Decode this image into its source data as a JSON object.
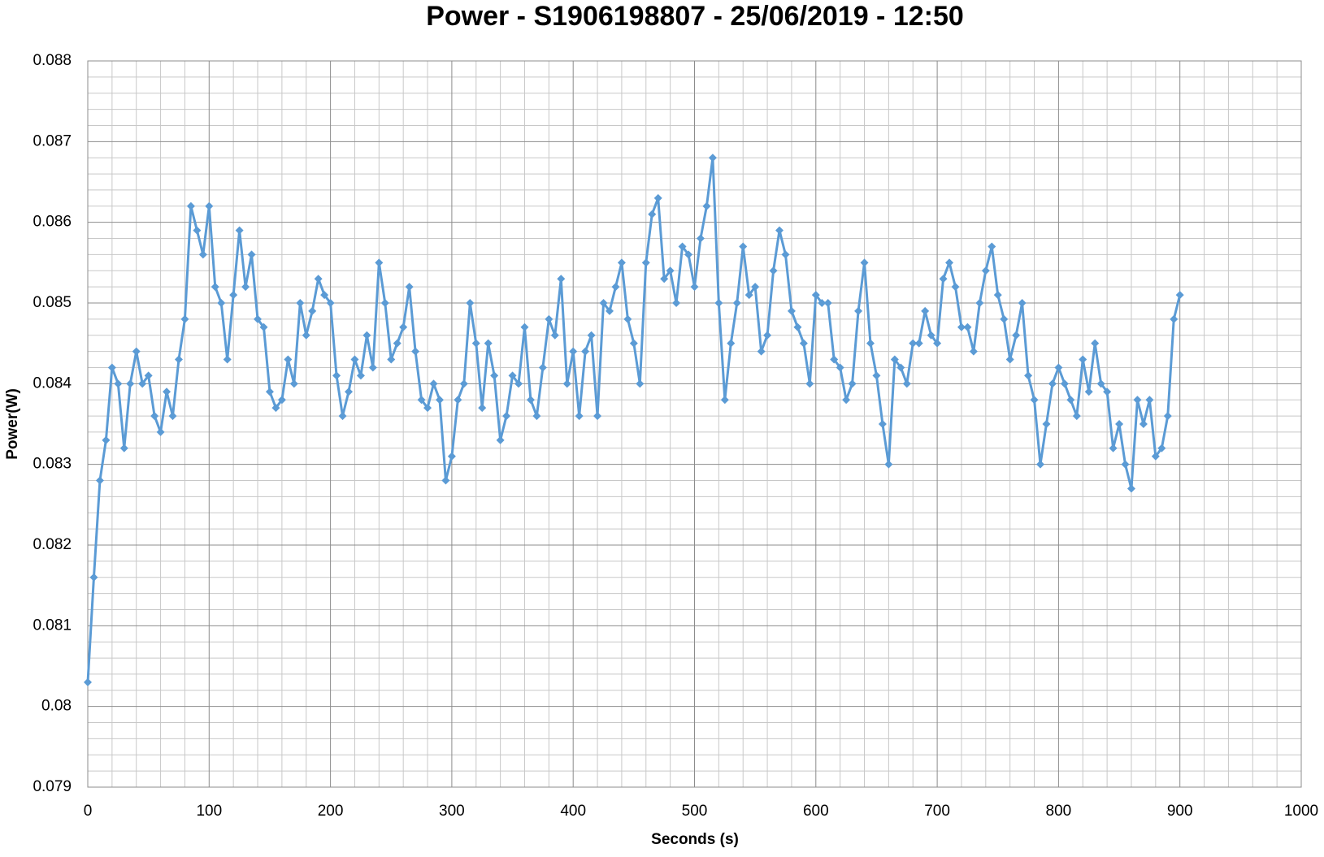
{
  "chart_data": {
    "type": "line",
    "title": "Power - S1906198807 - 25/06/2019 - 12:50",
    "x_label": "Seconds (s)",
    "y_label": "Power(W)",
    "xlim": [
      0,
      1000
    ],
    "xticks": [
      0,
      100,
      200,
      300,
      400,
      500,
      600,
      700,
      800,
      900,
      1000
    ],
    "ylim": [
      0.079,
      0.088
    ],
    "yticks": [
      0.079,
      0.08,
      0.081,
      0.082,
      0.083,
      0.084,
      0.085,
      0.086,
      0.087,
      0.088
    ],
    "grid": true,
    "minor_divisions": {
      "x": 5,
      "y": 5
    },
    "x": [
      0,
      5,
      10,
      15,
      20,
      25,
      30,
      35,
      40,
      45,
      50,
      55,
      60,
      65,
      70,
      75,
      80,
      85,
      90,
      95,
      100,
      105,
      110,
      115,
      120,
      125,
      130,
      135,
      140,
      145,
      150,
      155,
      160,
      165,
      170,
      175,
      180,
      185,
      190,
      195,
      200,
      205,
      210,
      215,
      220,
      225,
      230,
      235,
      240,
      245,
      250,
      255,
      260,
      265,
      270,
      275,
      280,
      285,
      290,
      295,
      300,
      305,
      310,
      315,
      320,
      325,
      330,
      335,
      340,
      345,
      350,
      355,
      360,
      365,
      370,
      375,
      380,
      385,
      390,
      395,
      400,
      405,
      410,
      415,
      420,
      425,
      430,
      435,
      440,
      445,
      450,
      455,
      460,
      465,
      470,
      475,
      480,
      485,
      490,
      495,
      500,
      505,
      510,
      515,
      520,
      525,
      530,
      535,
      540,
      545,
      550,
      555,
      560,
      565,
      570,
      575,
      580,
      585,
      590,
      595,
      600,
      605,
      610,
      615,
      620,
      625,
      630,
      635,
      640,
      645,
      650,
      655,
      660,
      665,
      670,
      675,
      680,
      685,
      690,
      695,
      700,
      705,
      710,
      715,
      720,
      725,
      730,
      735,
      740,
      745,
      750,
      755,
      760,
      765,
      770,
      775,
      780,
      785,
      790,
      795,
      800,
      805,
      810,
      815,
      820,
      825,
      830,
      835,
      840,
      845,
      850,
      855,
      860,
      865,
      870,
      875,
      880,
      885,
      890,
      895,
      900
    ],
    "series": [
      {
        "name": "Power",
        "color": "#5b9bd5",
        "values": [
          0.0803,
          0.0816,
          0.0828,
          0.0833,
          0.0842,
          0.084,
          0.0832,
          0.084,
          0.0844,
          0.084,
          0.0841,
          0.0836,
          0.0834,
          0.0839,
          0.0836,
          0.0843,
          0.0848,
          0.0862,
          0.0859,
          0.0856,
          0.0862,
          0.0852,
          0.085,
          0.0843,
          0.0851,
          0.0859,
          0.0852,
          0.0856,
          0.0848,
          0.0847,
          0.0839,
          0.0837,
          0.0838,
          0.0843,
          0.084,
          0.085,
          0.0846,
          0.0849,
          0.0853,
          0.0851,
          0.085,
          0.0841,
          0.0836,
          0.0839,
          0.0843,
          0.0841,
          0.0846,
          0.0842,
          0.0855,
          0.085,
          0.0843,
          0.0845,
          0.0847,
          0.0852,
          0.0844,
          0.0838,
          0.0837,
          0.084,
          0.0838,
          0.0828,
          0.0831,
          0.0838,
          0.084,
          0.085,
          0.0845,
          0.0837,
          0.0845,
          0.0841,
          0.0833,
          0.0836,
          0.0841,
          0.084,
          0.0847,
          0.0838,
          0.0836,
          0.0842,
          0.0848,
          0.0846,
          0.0853,
          0.084,
          0.0844,
          0.0836,
          0.0844,
          0.0846,
          0.0836,
          0.085,
          0.0849,
          0.0852,
          0.0855,
          0.0848,
          0.0845,
          0.084,
          0.0855,
          0.0861,
          0.0863,
          0.0853,
          0.0854,
          0.085,
          0.0857,
          0.0856,
          0.0852,
          0.0858,
          0.0862,
          0.0868,
          0.085,
          0.0838,
          0.0845,
          0.085,
          0.0857,
          0.0851,
          0.0852,
          0.0844,
          0.0846,
          0.0854,
          0.0859,
          0.0856,
          0.0849,
          0.0847,
          0.0845,
          0.084,
          0.0851,
          0.085,
          0.085,
          0.0843,
          0.0842,
          0.0838,
          0.084,
          0.0849,
          0.0855,
          0.0845,
          0.0841,
          0.0835,
          0.083,
          0.0843,
          0.0842,
          0.084,
          0.0845,
          0.0845,
          0.0849,
          0.0846,
          0.0845,
          0.0853,
          0.0855,
          0.0852,
          0.0847,
          0.0847,
          0.0844,
          0.085,
          0.0854,
          0.0857,
          0.0851,
          0.0848,
          0.0843,
          0.0846,
          0.085,
          0.0841,
          0.0838,
          0.083,
          0.0835,
          0.084,
          0.0842,
          0.084,
          0.0838,
          0.0836,
          0.0843,
          0.0839,
          0.0845,
          0.084,
          0.0839,
          0.0832,
          0.0835,
          0.083,
          0.0827,
          0.0838,
          0.0835,
          0.0838,
          0.0831,
          0.0832,
          0.0836,
          0.0848,
          0.0851
        ]
      }
    ]
  }
}
